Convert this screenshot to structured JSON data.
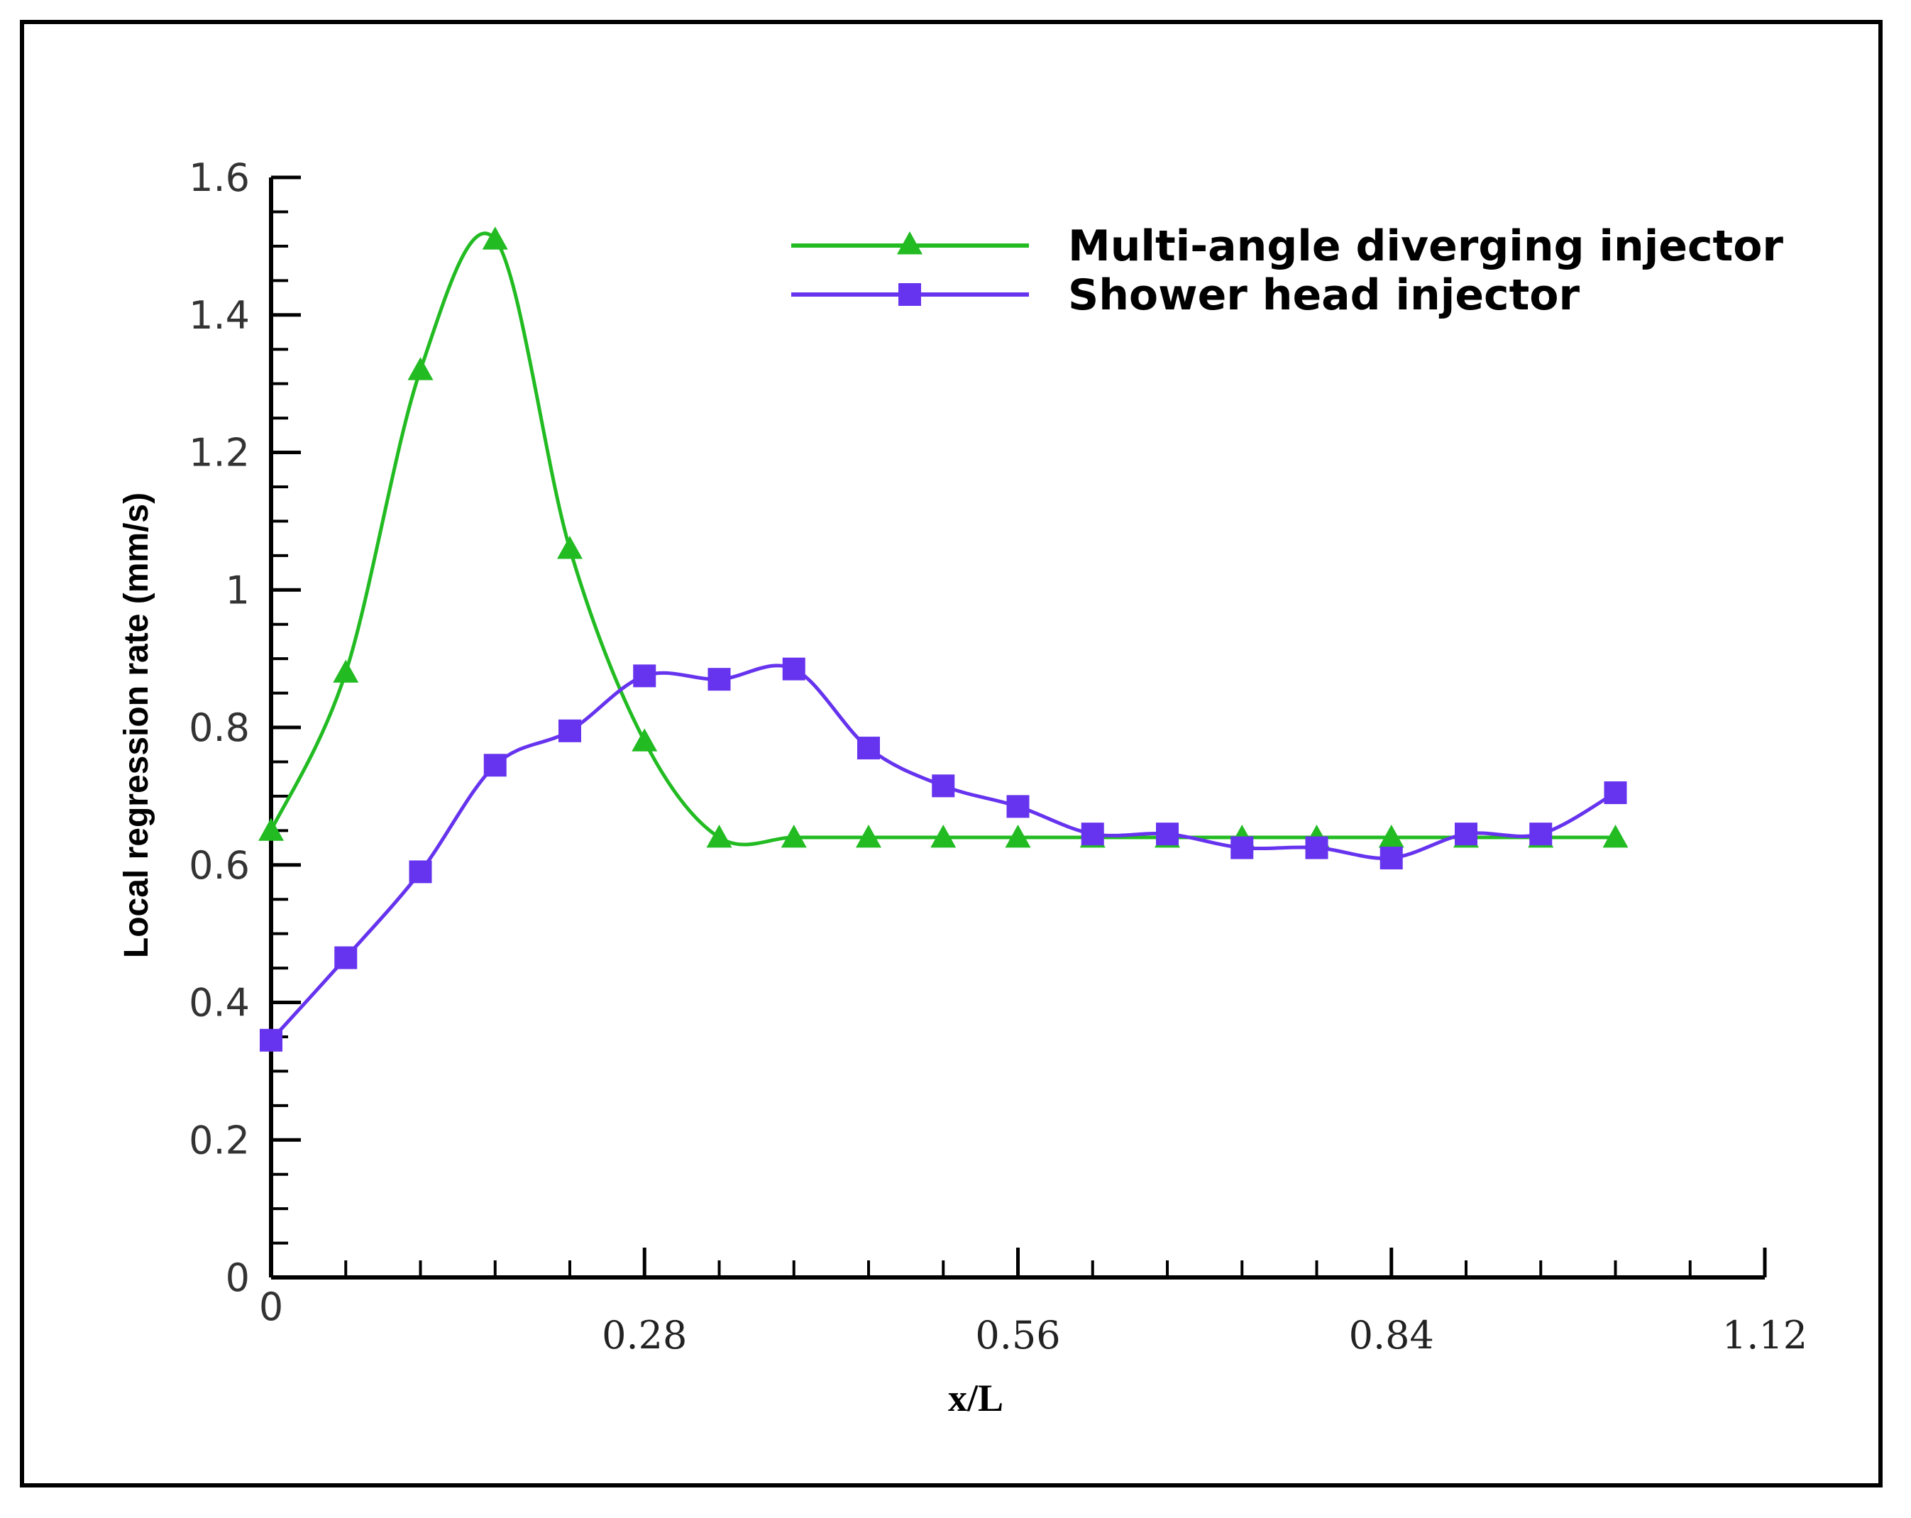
{
  "colors": {
    "series1": "#22bb22",
    "series2": "#6633ee",
    "axis": "#000000"
  },
  "chart_data": {
    "type": "line",
    "title": "",
    "xlabel": "x/L",
    "ylabel": "Local regression rate (mm/s)",
    "xlim": [
      0,
      1.12
    ],
    "ylim": [
      0,
      1.6
    ],
    "x_ticks": [
      0,
      0.28,
      0.56,
      0.84,
      1.12
    ],
    "x_tick_labels": [
      "0",
      "0.28",
      "0.56",
      "0.84",
      "1.12"
    ],
    "y_ticks": [
      0,
      0.2,
      0.4,
      0.6,
      0.8,
      1,
      1.2,
      1.4,
      1.6
    ],
    "y_tick_labels": [
      "0",
      "0.2",
      "0.4",
      "0.6",
      "0.8",
      "1",
      "1.2",
      "1.4",
      "1.6"
    ],
    "grid": false,
    "legend_position": "top-right",
    "series": [
      {
        "name": "Multi-angle diverging injector",
        "marker": "triangle",
        "color": "#22bb22",
        "x": [
          0,
          0.056,
          0.112,
          0.168,
          0.224,
          0.28,
          0.336,
          0.392,
          0.448,
          0.504,
          0.56,
          0.616,
          0.672,
          0.728,
          0.784,
          0.84,
          0.896,
          0.952,
          1.008
        ],
        "y": [
          0.65,
          0.88,
          1.32,
          1.51,
          1.06,
          0.78,
          0.64,
          0.64,
          0.64,
          0.64,
          0.64,
          0.64,
          0.64,
          0.64,
          0.64,
          0.64,
          0.64,
          0.64,
          0.64
        ]
      },
      {
        "name": "Shower head injector",
        "marker": "square",
        "color": "#6633ee",
        "x": [
          0,
          0.056,
          0.112,
          0.168,
          0.224,
          0.28,
          0.336,
          0.392,
          0.448,
          0.504,
          0.56,
          0.616,
          0.672,
          0.728,
          0.784,
          0.84,
          0.896,
          0.952,
          1.008
        ],
        "y": [
          0.345,
          0.465,
          0.59,
          0.745,
          0.795,
          0.875,
          0.87,
          0.885,
          0.77,
          0.715,
          0.685,
          0.645,
          0.645,
          0.625,
          0.625,
          0.61,
          0.645,
          0.645,
          0.705
        ]
      }
    ]
  }
}
